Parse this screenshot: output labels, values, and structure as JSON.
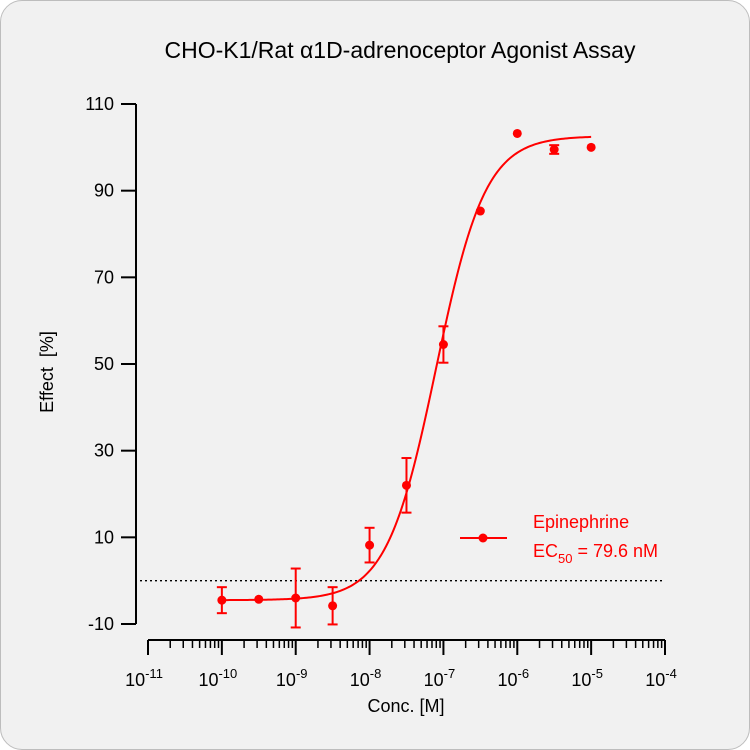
{
  "chart_data": {
    "type": "scatter",
    "title": "CHO-K1/Rat α1D-adrenoceptor Agonist Assay",
    "xlabel": "Conc. [M]",
    "ylabel": "Effect  [%]",
    "x_scale": "log",
    "xlim": [
      1e-11,
      0.0001
    ],
    "ylim": [
      -10,
      110
    ],
    "y_ticks": [
      -10,
      10,
      30,
      50,
      70,
      90,
      110
    ],
    "x_tick_exponents": [
      -11,
      -10,
      -9,
      -8,
      -7,
      -6,
      -5,
      -4
    ],
    "x_tick_base": "10",
    "baseline_y": 0,
    "grid": false,
    "legend_position": "right",
    "color": "#ff0000",
    "series": [
      {
        "name": "Epinephrine",
        "ec50_label": "EC",
        "ec50_sub": "50",
        "ec50_value": " = 79.6 nM",
        "points": [
          {
            "x": 1e-10,
            "y": -4.5,
            "err": 3.0
          },
          {
            "x": 3.16e-10,
            "y": -4.3,
            "err": 0
          },
          {
            "x": 1e-09,
            "y": -4.0,
            "err": 6.8
          },
          {
            "x": 3.16e-09,
            "y": -5.8,
            "err": 4.3
          },
          {
            "x": 1e-08,
            "y": 8.2,
            "err": 4.0
          },
          {
            "x": 3.16e-08,
            "y": 22.0,
            "err": 6.3
          },
          {
            "x": 1e-07,
            "y": 54.5,
            "err": 4.2
          },
          {
            "x": 3.16e-07,
            "y": 85.3,
            "err": 0
          },
          {
            "x": 1e-06,
            "y": 103.2,
            "err": 0
          },
          {
            "x": 3.16e-06,
            "y": 99.5,
            "err": 1.0
          },
          {
            "x": 1e-05,
            "y": 100.0,
            "err": 0
          }
        ],
        "fit": {
          "bottom": -4.5,
          "top": 102.6,
          "log_ec50": -7.099,
          "hill": 1.3,
          "x_from": 1e-10,
          "x_to": 1e-05
        }
      }
    ]
  }
}
